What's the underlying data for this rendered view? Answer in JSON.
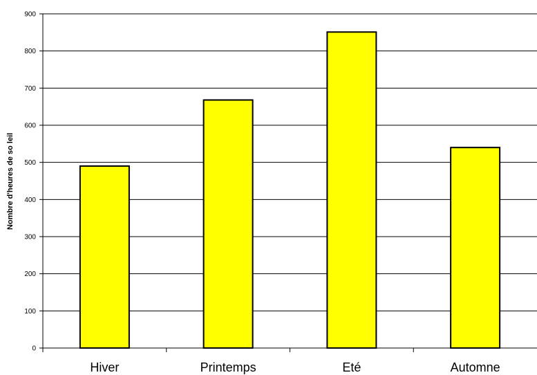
{
  "chart_data": {
    "type": "bar",
    "title": "",
    "xlabel": "",
    "ylabel": "Nombre d'heures de so leil",
    "categories": [
      "Hiver",
      "Printemps",
      "Eté",
      "Automne"
    ],
    "values": [
      490,
      668,
      851,
      540
    ],
    "ylim": [
      0,
      900
    ],
    "yticks": [
      "0",
      "100",
      "200",
      "300",
      "400",
      "500",
      "600",
      "700",
      "800",
      "900"
    ],
    "grid": true,
    "legend": "none",
    "colors": {
      "bar_fill": "#ffff00",
      "bar_stroke": "#000000",
      "gridline": "#000000"
    }
  }
}
